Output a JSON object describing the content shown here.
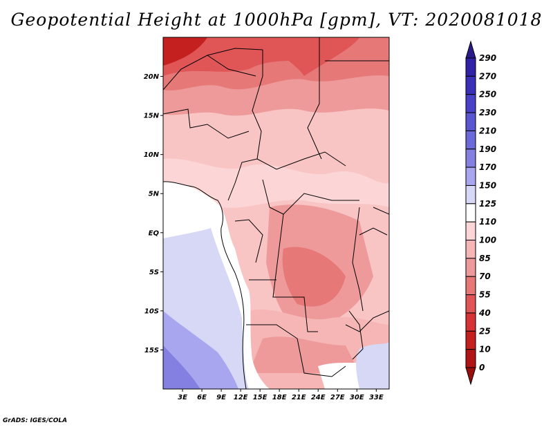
{
  "title": "Geopotential Height at 1000hPa [gpm], VT: 2020081018",
  "credit": "GrADS: IGES/COLA",
  "map": {
    "lon_range": [
      0,
      35
    ],
    "lat_range": [
      -20,
      25
    ],
    "lat_ticks": [
      "20N",
      "15N",
      "10N",
      "5N",
      "EQ",
      "5S",
      "10S",
      "15S"
    ],
    "lat_tick_values": [
      20,
      15,
      10,
      5,
      0,
      -5,
      -10,
      -15
    ],
    "lon_ticks": [
      "3E",
      "6E",
      "9E",
      "12E",
      "15E",
      "18E",
      "21E",
      "24E",
      "27E",
      "30E",
      "33E"
    ],
    "lon_tick_values": [
      3,
      6,
      9,
      12,
      15,
      18,
      21,
      24,
      27,
      30,
      33
    ]
  },
  "colorbar": {
    "labels": [
      "290",
      "270",
      "250",
      "230",
      "210",
      "190",
      "170",
      "150",
      "125",
      "110",
      "100",
      "85",
      "70",
      "55",
      "40",
      "25",
      "10",
      "0"
    ],
    "colors": [
      "#2a1a8a",
      "#2f22a6",
      "#3a30b8",
      "#4a42c6",
      "#5a56d0",
      "#6c6ad8",
      "#8480e2",
      "#a8a6ee",
      "#d6d8f6",
      "#ffffff",
      "#fcd6d6",
      "#f6b6b6",
      "#ee9a9a",
      "#e67878",
      "#e05656",
      "#d63434",
      "#c42020",
      "#b01414",
      "#9a0d0d"
    ]
  }
}
